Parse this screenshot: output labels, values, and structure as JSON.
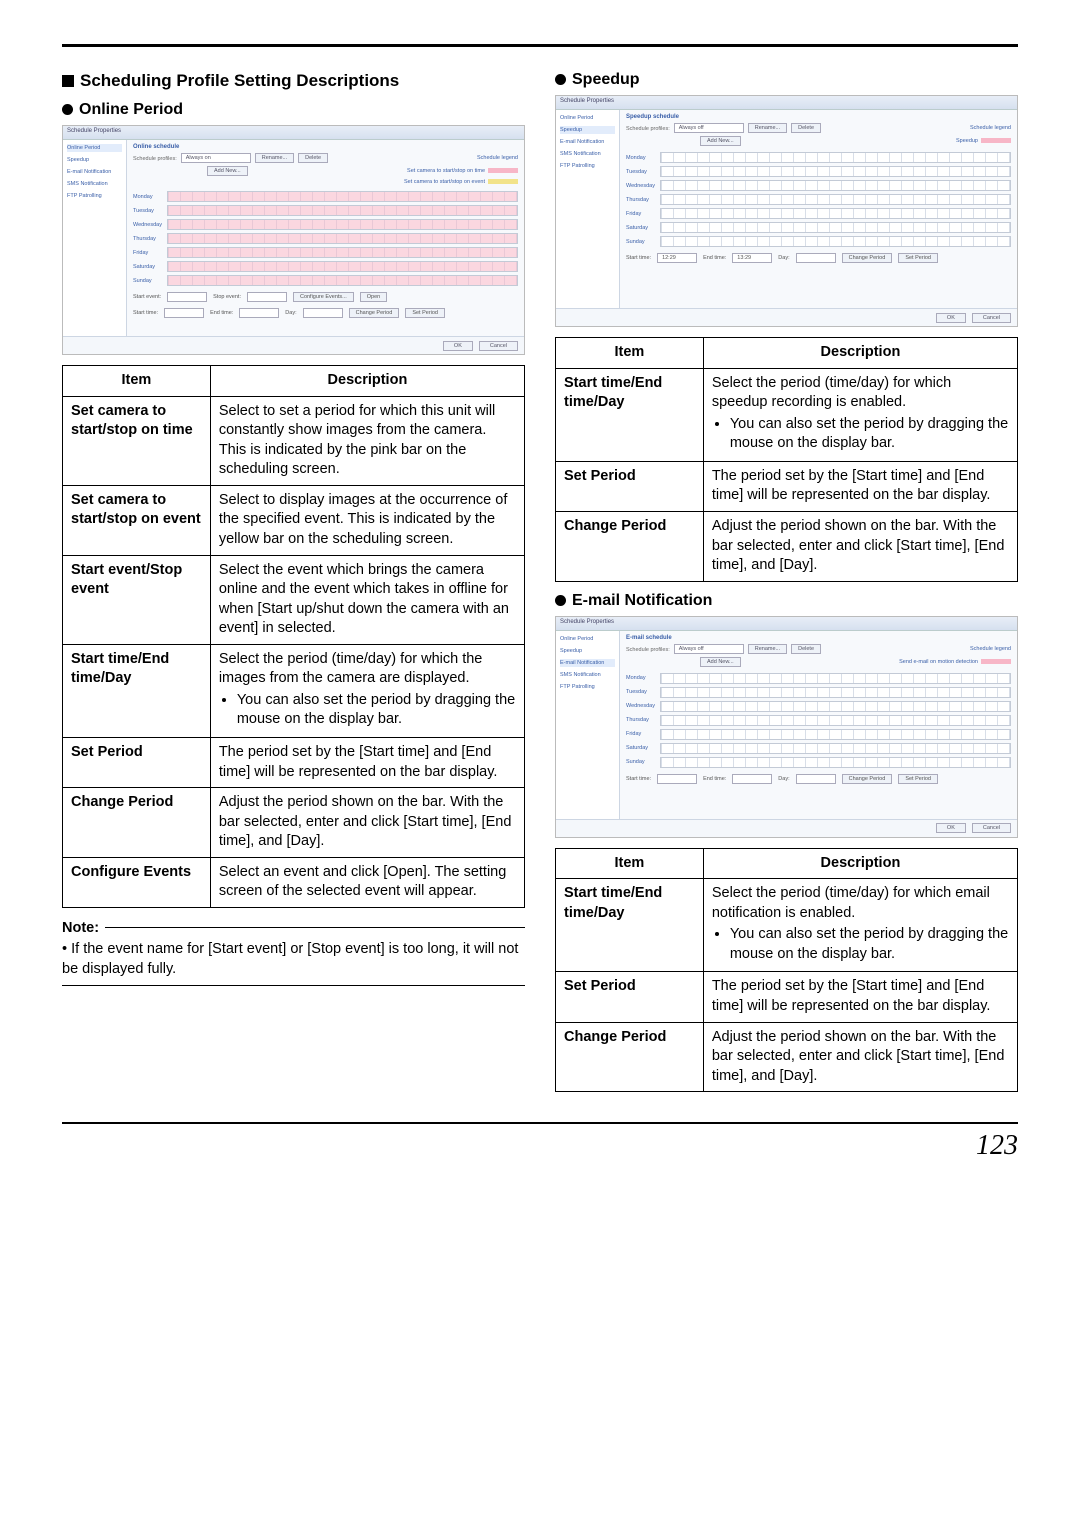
{
  "page_number": "123",
  "heading_main": "Scheduling Profile Setting Descriptions",
  "online": {
    "heading": "Online Period",
    "ss": {
      "title": "Schedule Properties",
      "left": [
        "Online Period",
        "Speedup",
        "E-mail Notification",
        "SMS Notification",
        "FTP Patrolling"
      ],
      "left_sel": 0,
      "caption": "Online schedule",
      "sub": "Schedule profiles:",
      "dropdown": "Always on",
      "btn_rename": "Rename...",
      "btn_delete": "Delete",
      "btn_addnew": "Add New...",
      "legend1": "Set camera to start/stop on time",
      "legend2": "Set camera to start/stop on event",
      "legend_title": "Schedule legend",
      "days": [
        "Monday",
        "Tuesday",
        "Wednesday",
        "Thursday",
        "Friday",
        "Saturday",
        "Sunday"
      ],
      "low": {
        "start_event_lbl": "Start event:",
        "stop_event_lbl": "Stop event:",
        "cfg_btn": "Configure Events...",
        "open_btn": "Open",
        "start_lbl": "Start time:",
        "end_lbl": "End time:",
        "day_lbl": "Day:",
        "chg": "Change Period",
        "set": "Set Period"
      },
      "ok": "OK",
      "cancel": "Cancel"
    },
    "table": [
      [
        "Set camera to start/stop on time",
        "Select to set a period for which this unit will constantly show images from the camera. This is indicated by the pink bar on the scheduling screen."
      ],
      [
        "Set camera to start/stop on event",
        "Select to display images at the occurrence of the specified event. This is indicated by the yellow bar on the scheduling screen."
      ],
      [
        "Start event/Stop event",
        "Select the event which brings the camera online and the event which takes in offline for when [Start up/shut down the camera with an event] in selected."
      ],
      [
        "Start time/End time/Day",
        "Select the period (time/day) for which the images from the camera are displayed.\n• You can also set the period by dragging the mouse on the display bar."
      ],
      [
        "Set Period",
        "The period set by the [Start time] and [End time] will be represented on the bar display."
      ],
      [
        "Change Period",
        "Adjust the period shown on the bar. With the bar selected, enter and click [Start time], [End time], and [Day]."
      ],
      [
        "Configure Events",
        "Select an event and click [Open]. The setting screen of the selected event will appear."
      ]
    ],
    "note_h": "Note:",
    "note_body": "• If the event name for [Start event] or [Stop event] is too long, it will not be displayed fully."
  },
  "speedup": {
    "heading": "Speedup",
    "ss": {
      "title": "Schedule Properties",
      "left": [
        "Online Period",
        "Speedup",
        "E-mail Notification",
        "SMS Notification",
        "FTP Patrolling"
      ],
      "left_sel": 1,
      "caption": "Speedup schedule",
      "sub": "Schedule profiles:",
      "dropdown": "Always off",
      "btn_rename": "Rename...",
      "btn_delete": "Delete",
      "btn_addnew": "Add New...",
      "legend1": "Speedup",
      "legend_title": "Schedule legend",
      "days": [
        "Monday",
        "Tuesday",
        "Wednesday",
        "Thursday",
        "Friday",
        "Saturday",
        "Sunday"
      ],
      "low": {
        "start_lbl": "Start time:",
        "start_val": "12:29",
        "end_lbl": "End time:",
        "end_val": "13:29",
        "day_lbl": "Day:",
        "chg": "Change Period",
        "set": "Set Period"
      },
      "ok": "OK",
      "cancel": "Cancel"
    },
    "table": [
      [
        "Start time/End time/Day",
        "Select the period (time/day) for which speedup recording is enabled.\n• You can also set the period by dragging the mouse on the display bar."
      ],
      [
        "Set Period",
        "The period set by the [Start time] and [End time] will be represented on the bar display."
      ],
      [
        "Change Period",
        "Adjust the period shown on the bar. With the bar selected, enter and click [Start time], [End time], and [Day]."
      ]
    ]
  },
  "email": {
    "heading": "E-mail Notification",
    "ss": {
      "title": "Schedule Properties",
      "left": [
        "Online Period",
        "Speedup",
        "E-mail Notification",
        "SMS Notification",
        "FTP Patrolling"
      ],
      "left_sel": 2,
      "caption": "E-mail schedule",
      "sub": "Schedule profiles:",
      "dropdown": "Always off",
      "btn_rename": "Rename...",
      "btn_delete": "Delete",
      "btn_addnew": "Add New...",
      "legend1": "Send e-mail on motion detection",
      "legend_title": "Schedule legend",
      "days": [
        "Monday",
        "Tuesday",
        "Wednesday",
        "Thursday",
        "Friday",
        "Saturday",
        "Sunday"
      ],
      "low": {
        "start_lbl": "Start time:",
        "end_lbl": "End time:",
        "day_lbl": "Day:",
        "chg": "Change Period",
        "set": "Set Period"
      },
      "ok": "OK",
      "cancel": "Cancel"
    },
    "table": [
      [
        "Start time/End time/Day",
        "Select the period (time/day) for which email notification is enabled.\n• You can also set the period by dragging the mouse on the display bar."
      ],
      [
        "Set Period",
        "The period set by the [Start time] and [End time] will be represented on the bar display."
      ],
      [
        "Change Period",
        "Adjust the period shown on the bar. With the bar selected, enter and click [Start time], [End time], and [Day]."
      ]
    ]
  },
  "th_item": "Item",
  "th_desc": "Description"
}
